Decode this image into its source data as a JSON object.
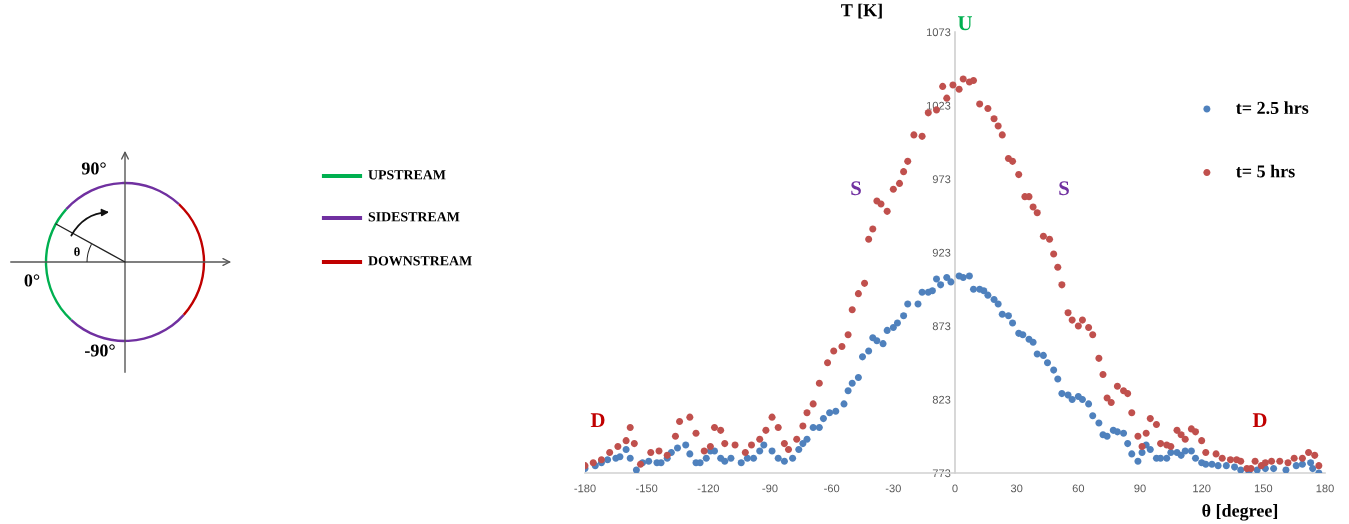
{
  "chart_data": {
    "type": "scatter",
    "xlabel": "θ [degree]",
    "ylabel": "T [K]",
    "xlim": [
      -180,
      180
    ],
    "xticks": [
      -180,
      -150,
      -120,
      -90,
      -60,
      -30,
      0,
      30,
      60,
      90,
      120,
      150,
      180
    ],
    "ylim": [
      773,
      1073
    ],
    "yticks": [
      773,
      823,
      873,
      923,
      973,
      1023,
      1073
    ],
    "marker": "circle",
    "legend": "top right",
    "annotations": [
      "D",
      "S",
      "U",
      "S",
      "D",
      "90°",
      "0°",
      "-90°",
      "θ",
      "UPSTREAM",
      "SIDESTREAM",
      "DOWNSTREAM"
    ],
    "series": [
      {
        "name": "t= 2.5 hrs",
        "color": "#4f81bd",
        "x": [
          -180,
          -175,
          -172,
          -169,
          -165,
          -163,
          -160,
          -158,
          -155,
          -152,
          -149,
          -145,
          -143,
          -140,
          -138,
          -135,
          -131,
          -129,
          -126,
          -124,
          -121,
          -119,
          -117,
          -114,
          -112,
          -109,
          -104,
          -101,
          -98,
          -95,
          -93,
          -89,
          -86,
          -83,
          -79,
          -76,
          -74,
          -72,
          -69,
          -66,
          -64,
          -61,
          -58,
          -54,
          -52,
          -50,
          -47,
          -45,
          -42,
          -40,
          -38,
          -35,
          -33,
          -30,
          -28,
          -25,
          -23,
          -18,
          -16,
          -13,
          -11,
          -9,
          -7,
          -4,
          -2,
          2,
          4,
          7,
          9,
          12,
          14,
          16,
          19,
          21,
          23,
          26,
          28,
          31,
          33,
          36,
          38,
          40,
          43,
          45,
          48,
          50,
          52,
          55,
          57,
          60,
          62,
          65,
          67,
          70,
          72,
          74,
          77,
          79,
          82,
          84,
          86,
          89,
          91,
          93,
          95,
          98,
          100,
          103,
          105,
          108,
          110,
          112,
          115,
          117,
          120,
          122,
          125,
          128,
          132,
          136,
          139,
          143,
          147,
          151,
          155,
          161,
          166,
          169,
          173,
          174,
          177
        ],
        "values": [
          776,
          778,
          780,
          782,
          783,
          784,
          789,
          783,
          775,
          780,
          781,
          780,
          780,
          783,
          787,
          790,
          792,
          786,
          780,
          780,
          783,
          788,
          788,
          783,
          781,
          783,
          780,
          783,
          783,
          788,
          792,
          788,
          783,
          781,
          783,
          789,
          793,
          796,
          804,
          804,
          810,
          814,
          815,
          820,
          829,
          834,
          838,
          852,
          856,
          865,
          863,
          861,
          870,
          872,
          875,
          880,
          888,
          888,
          896,
          896,
          897,
          905,
          901,
          906,
          903,
          907,
          906,
          907,
          898,
          898,
          897,
          894,
          891,
          888,
          881,
          880,
          875,
          868,
          867,
          864,
          862,
          854,
          853,
          848,
          843,
          837,
          827,
          826,
          823,
          825,
          823,
          820,
          812,
          807,
          799,
          798,
          802,
          801,
          800,
          793,
          786,
          781,
          787,
          792,
          789,
          783,
          783,
          783,
          787,
          787,
          785,
          788,
          788,
          783,
          780,
          779,
          779,
          778,
          778,
          777,
          775,
          774,
          775,
          776,
          776,
          775,
          778,
          779,
          780,
          776,
          773
        ]
      },
      {
        "name": "t= 5 hrs",
        "color": "#c0504d",
        "x": [
          -180,
          -176,
          -172,
          -168,
          -164,
          -160,
          -158,
          -156,
          -153,
          -148,
          -144,
          -140,
          -136,
          -134,
          -129,
          -126,
          -122,
          -119,
          -117,
          -114,
          -112,
          -107,
          -102,
          -99,
          -95,
          -92,
          -89,
          -86,
          -83,
          -81,
          -77,
          -74,
          -72,
          -69,
          -66,
          -62,
          -59,
          -55,
          -52,
          -50,
          -47,
          -44,
          -42,
          -40,
          -38,
          -36,
          -33,
          -30,
          -27,
          -25,
          -23,
          -20,
          -16,
          -13,
          -9,
          -6,
          -4,
          -1,
          2,
          4,
          7,
          9,
          12,
          16,
          19,
          21,
          23,
          26,
          28,
          31,
          34,
          36,
          38,
          40,
          43,
          46,
          48,
          50,
          52,
          55,
          57,
          60,
          62,
          65,
          67,
          70,
          72,
          74,
          76,
          79,
          82,
          84,
          86,
          89,
          91,
          93,
          95,
          98,
          100,
          103,
          105,
          108,
          110,
          112,
          115,
          117,
          120,
          122,
          127,
          130,
          134,
          137,
          139,
          142,
          144,
          146,
          149,
          151,
          154,
          158,
          162,
          165,
          169,
          172,
          175,
          177
        ],
        "values": [
          778,
          780,
          782,
          787,
          791,
          795,
          804,
          793,
          779,
          787,
          788,
          785,
          798,
          808,
          811,
          800,
          788,
          791,
          804,
          802,
          793,
          792,
          787,
          792,
          796,
          802,
          811,
          804,
          793,
          789,
          796,
          805,
          814,
          820,
          834,
          848,
          856,
          859,
          867,
          884,
          895,
          902,
          932,
          939,
          958,
          956,
          951,
          966,
          970,
          978,
          985,
          1003,
          1002,
          1018,
          1020,
          1036,
          1028,
          1037,
          1034,
          1041,
          1039,
          1040,
          1024,
          1021,
          1014,
          1009,
          1003,
          987,
          985,
          976,
          961,
          961,
          954,
          950,
          934,
          932,
          922,
          913,
          901,
          882,
          877,
          873,
          877,
          872,
          867,
          851,
          840,
          824,
          821,
          832,
          829,
          827,
          814,
          798,
          791,
          800,
          810,
          806,
          793,
          792,
          791,
          802,
          799,
          796,
          803,
          801,
          795,
          787,
          786,
          783,
          782,
          782,
          781,
          776,
          776,
          781,
          778,
          780,
          781,
          781,
          780,
          783,
          783,
          787,
          785,
          778
        ]
      }
    ]
  }
}
